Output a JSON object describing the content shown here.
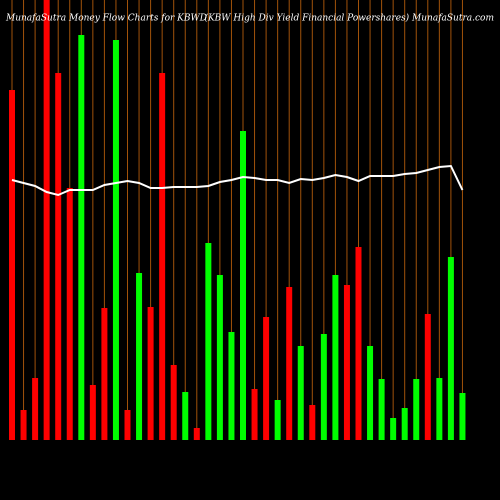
{
  "chart_data": {
    "type": "bar",
    "title": "MunafaSutra  Money Flow  Charts for KBWD",
    "subtitle": "(KBW High Div   Yield Financial Powershares) MunafaSutra.com",
    "ylim": [
      0,
      440
    ],
    "grid": true,
    "grid_color": "#a0520a",
    "values": [
      350,
      30,
      62,
      440,
      367,
      252,
      405,
      55,
      132,
      400,
      30,
      167,
      133,
      367,
      75,
      48,
      12,
      197,
      165,
      108,
      309,
      51,
      123,
      40,
      153,
      94,
      35,
      106,
      165,
      155,
      193,
      94,
      61,
      22,
      32,
      61,
      126,
      62,
      183,
      47
    ],
    "colors": [
      "#ff0000",
      "#ff0000",
      "#ff0000",
      "#ff0000",
      "#ff0000",
      "#ff0000",
      "#00ff00",
      "#ff0000",
      "#ff0000",
      "#00ff00",
      "#ff0000",
      "#00ff00",
      "#ff0000",
      "#ff0000",
      "#ff0000",
      "#00ff00",
      "#ff0000",
      "#00ff00",
      "#00ff00",
      "#00ff00",
      "#00ff00",
      "#ff0000",
      "#ff0000",
      "#00ff00",
      "#ff0000",
      "#00ff00",
      "#ff0000",
      "#00ff00",
      "#00ff00",
      "#ff0000",
      "#ff0000",
      "#00ff00",
      "#00ff00",
      "#00ff00",
      "#00ff00",
      "#00ff00",
      "#ff0000",
      "#00ff00",
      "#00ff00",
      "#00ff00"
    ],
    "line": {
      "color": "#ffffff",
      "values": [
        260,
        257,
        254,
        248,
        245,
        250,
        250,
        250,
        255,
        257,
        259,
        257,
        252,
        252,
        253,
        253,
        253,
        254,
        258,
        260,
        263,
        262,
        260,
        260,
        257,
        261,
        260,
        262,
        265,
        263,
        259,
        264,
        264,
        264,
        266,
        267,
        270,
        273,
        274,
        250
      ]
    }
  }
}
